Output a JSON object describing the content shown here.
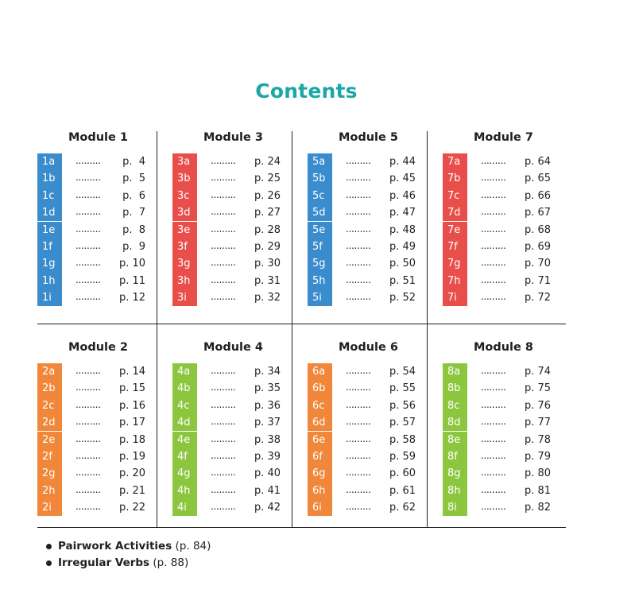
{
  "title": "Contents",
  "modules": [
    {
      "name": "Module 1",
      "color": "#3b8ccc",
      "lessons": [
        {
          "code": "1a",
          "page": "p.  4"
        },
        {
          "code": "1b",
          "page": "p.  5"
        },
        {
          "code": "1c",
          "page": "p.  6"
        },
        {
          "code": "1d",
          "page": "p.  7"
        },
        {
          "code": "1e",
          "page": "p.  8"
        },
        {
          "code": "1f",
          "page": "p.  9"
        },
        {
          "code": "1g",
          "page": "p. 10"
        },
        {
          "code": "1h",
          "page": "p. 11"
        },
        {
          "code": "1i",
          "page": "p. 12"
        }
      ]
    },
    {
      "name": "Module 3",
      "color": "#e94f4a",
      "lessons": [
        {
          "code": "3a",
          "page": "p. 24"
        },
        {
          "code": "3b",
          "page": "p. 25"
        },
        {
          "code": "3c",
          "page": "p. 26"
        },
        {
          "code": "3d",
          "page": "p. 27"
        },
        {
          "code": "3e",
          "page": "p. 28"
        },
        {
          "code": "3f",
          "page": "p. 29"
        },
        {
          "code": "3g",
          "page": "p. 30"
        },
        {
          "code": "3h",
          "page": "p. 31"
        },
        {
          "code": "3i",
          "page": "p. 32"
        }
      ]
    },
    {
      "name": "Module 5",
      "color": "#3b8ccc",
      "lessons": [
        {
          "code": "5a",
          "page": "p. 44"
        },
        {
          "code": "5b",
          "page": "p. 45"
        },
        {
          "code": "5c",
          "page": "p. 46"
        },
        {
          "code": "5d",
          "page": "p. 47"
        },
        {
          "code": "5e",
          "page": "p. 48"
        },
        {
          "code": "5f",
          "page": "p. 49"
        },
        {
          "code": "5g",
          "page": "p. 50"
        },
        {
          "code": "5h",
          "page": "p. 51"
        },
        {
          "code": "5i",
          "page": "p. 52"
        }
      ]
    },
    {
      "name": "Module 7",
      "color": "#e94f4a",
      "lessons": [
        {
          "code": "7a",
          "page": "p. 64"
        },
        {
          "code": "7b",
          "page": "p. 65"
        },
        {
          "code": "7c",
          "page": "p. 66"
        },
        {
          "code": "7d",
          "page": "p. 67"
        },
        {
          "code": "7e",
          "page": "p. 68"
        },
        {
          "code": "7f",
          "page": "p. 69"
        },
        {
          "code": "7g",
          "page": "p. 70"
        },
        {
          "code": "7h",
          "page": "p. 71"
        },
        {
          "code": "7i",
          "page": "p. 72"
        }
      ]
    },
    {
      "name": "Module 2",
      "color": "#f0873a",
      "lessons": [
        {
          "code": "2a",
          "page": "p. 14"
        },
        {
          "code": "2b",
          "page": "p. 15"
        },
        {
          "code": "2c",
          "page": "p. 16"
        },
        {
          "code": "2d",
          "page": "p. 17"
        },
        {
          "code": "2e",
          "page": "p. 18"
        },
        {
          "code": "2f",
          "page": "p. 19"
        },
        {
          "code": "2g",
          "page": "p. 20"
        },
        {
          "code": "2h",
          "page": "p. 21"
        },
        {
          "code": "2i",
          "page": "p. 22"
        }
      ]
    },
    {
      "name": "Module 4",
      "color": "#8cc63f",
      "lessons": [
        {
          "code": "4a",
          "page": "p. 34"
        },
        {
          "code": "4b",
          "page": "p. 35"
        },
        {
          "code": "4c",
          "page": "p. 36"
        },
        {
          "code": "4d",
          "page": "p. 37"
        },
        {
          "code": "4e",
          "page": "p. 38"
        },
        {
          "code": "4f",
          "page": "p. 39"
        },
        {
          "code": "4g",
          "page": "p. 40"
        },
        {
          "code": "4h",
          "page": "p. 41"
        },
        {
          "code": "4i",
          "page": "p. 42"
        }
      ]
    },
    {
      "name": "Module 6",
      "color": "#f0873a",
      "lessons": [
        {
          "code": "6a",
          "page": "p. 54"
        },
        {
          "code": "6b",
          "page": "p. 55"
        },
        {
          "code": "6c",
          "page": "p. 56"
        },
        {
          "code": "6d",
          "page": "p. 57"
        },
        {
          "code": "6e",
          "page": "p. 58"
        },
        {
          "code": "6f",
          "page": "p. 59"
        },
        {
          "code": "6g",
          "page": "p. 60"
        },
        {
          "code": "6h",
          "page": "p. 61"
        },
        {
          "code": "6i",
          "page": "p. 62"
        }
      ]
    },
    {
      "name": "Module 8",
      "color": "#8cc63f",
      "lessons": [
        {
          "code": "8a",
          "page": "p. 74"
        },
        {
          "code": "8b",
          "page": "p. 75"
        },
        {
          "code": "8c",
          "page": "p. 76"
        },
        {
          "code": "8d",
          "page": "p. 77"
        },
        {
          "code": "8e",
          "page": "p. 78"
        },
        {
          "code": "8f",
          "page": "p. 79"
        },
        {
          "code": "8g",
          "page": "p. 80"
        },
        {
          "code": "8h",
          "page": "p. 81"
        },
        {
          "code": "8i",
          "page": "p. 82"
        }
      ]
    }
  ],
  "extras": [
    {
      "name": "Pairwork Activities",
      "page": "(p. 84)"
    },
    {
      "name": "Irregular Verbs",
      "page": "(p. 88)"
    }
  ]
}
